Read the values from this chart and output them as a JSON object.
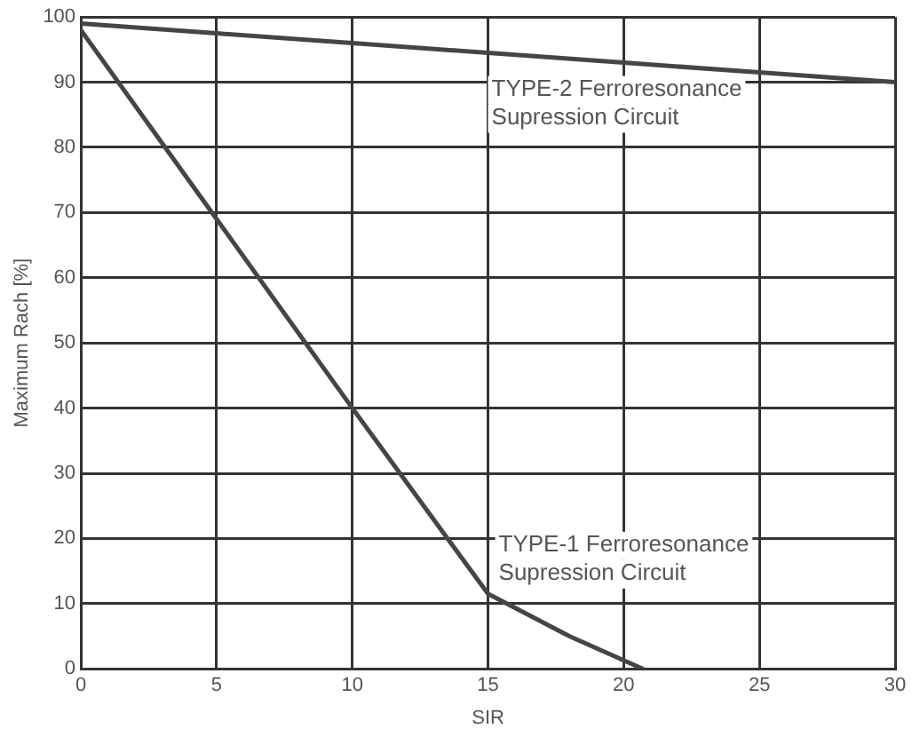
{
  "chart_data": {
    "type": "line",
    "xlabel": "SIR",
    "ylabel": "Maximum Rach [%]",
    "xlim": [
      0,
      30
    ],
    "xticks": [
      0,
      5,
      10,
      15,
      20,
      25,
      30
    ],
    "ylim": [
      0,
      100
    ],
    "yticks": [
      0,
      10,
      20,
      30,
      40,
      50,
      60,
      70,
      80,
      90,
      100
    ],
    "grid": true,
    "legend": false,
    "marker": "none",
    "line_style": "solid",
    "series": [
      {
        "name": "TYPE-2 Ferroresonance Supression Circuit",
        "color": "#454545",
        "x": [
          0,
          5,
          10,
          15,
          20,
          25,
          30
        ],
        "values": [
          99,
          97.5,
          96,
          94.5,
          93,
          91.5,
          90
        ]
      },
      {
        "name": "TYPE-1 Ferroresonance Supression Circuit",
        "color": "#454545",
        "x": [
          0,
          5,
          10,
          15,
          18,
          20.7
        ],
        "values": [
          98,
          69,
          40,
          11.5,
          5,
          0
        ]
      }
    ]
  }
}
